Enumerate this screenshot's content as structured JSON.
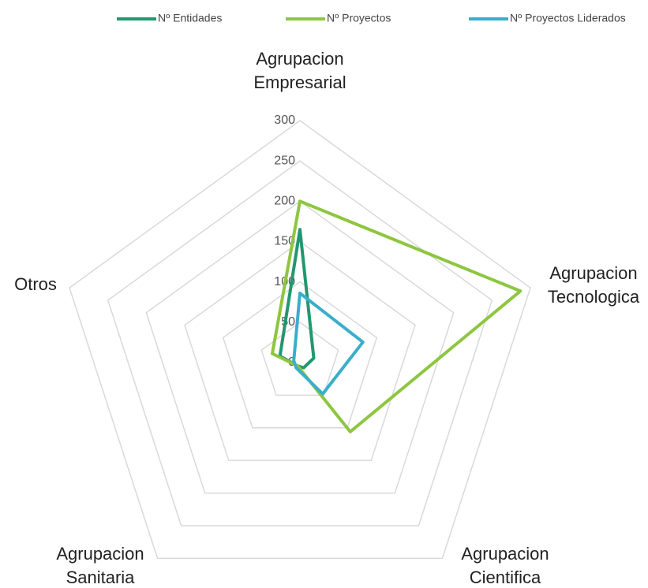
{
  "chart_data": {
    "type": "radar",
    "categories": [
      [
        "Agrupacion",
        "Empresarial"
      ],
      [
        "Agrupacion",
        "Tecnologica"
      ],
      [
        "Agrupacion",
        "Cientifica"
      ],
      [
        "Agrupacion",
        "Sanitaria"
      ],
      [
        "Otros"
      ]
    ],
    "series": [
      {
        "name": "Nº Entidades",
        "color": "#23976f",
        "values": [
          165,
          18,
          8,
          5,
          26
        ]
      },
      {
        "name": "Nº Proyectos",
        "color": "#8dc63f",
        "values": [
          200,
          287,
          106,
          5,
          36
        ]
      },
      {
        "name": "Nº Proyectos Liderados",
        "color": "#3aaecb",
        "values": [
          86,
          82,
          48,
          8,
          8
        ]
      }
    ],
    "ylim": [
      0,
      300
    ],
    "yticks": [
      0,
      50,
      100,
      150,
      200,
      250,
      300
    ],
    "grid": true,
    "legend": "top"
  }
}
